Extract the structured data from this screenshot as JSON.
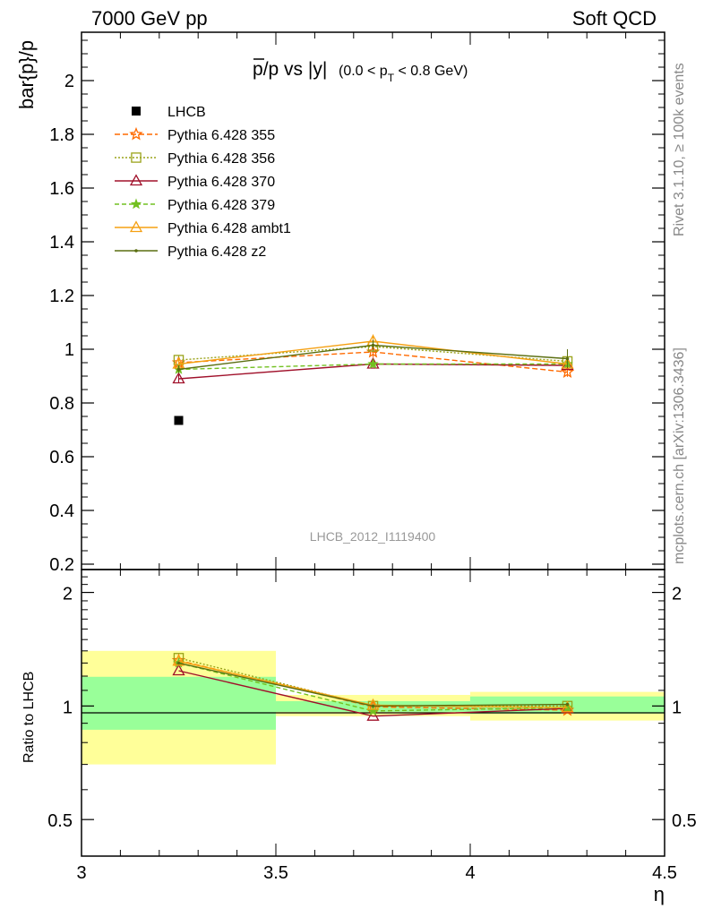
{
  "header": {
    "left": "7000 GeV pp",
    "right": "Soft QCD"
  },
  "side_labels": {
    "upper": "Rivet 3.1.10, ≥ 100k events",
    "lower": "mcplots.cern.ch [arXiv:1306.3436]"
  },
  "chart_data": [
    {
      "type": "line",
      "panel": "main",
      "title": "p̄/p vs |y|",
      "title_prefix": "p",
      "title_rest": "/p vs |y|",
      "subtitle": "(0.0 < p_T < 0.8 GeV)",
      "subtitle_pre": "(0.0 < p",
      "subtitle_sub": "T",
      "subtitle_post": " < 0.8 GeV)",
      "ylabel": "bar{p}/p",
      "watermark": "LHCB_2012_I1119400",
      "xlim": [
        3.0,
        4.5
      ],
      "ylim": [
        0.18,
        2.18
      ],
      "yticks": [
        0.2,
        0.4,
        0.6,
        0.8,
        1,
        1.2,
        1.4,
        1.6,
        1.8,
        2
      ],
      "ytick_labels": [
        "0.2",
        "0.4",
        "0.6",
        "0.8",
        "1",
        "1.2",
        "1.4",
        "1.6",
        "1.8",
        "2"
      ],
      "x": [
        3.25,
        3.75,
        4.25
      ],
      "data": {
        "name": "LHCB",
        "x": [
          3.25
        ],
        "values": [
          0.735
        ]
      },
      "series": [
        {
          "name": "Pythia 6.428 355",
          "color": "#ff6a00",
          "dash": "6,3",
          "marker": "star-open",
          "values": [
            0.95,
            0.99,
            0.915
          ],
          "errors": [
            0.018,
            0.02,
            0.018
          ]
        },
        {
          "name": "Pythia 6.428 356",
          "color": "#9aa31a",
          "dash": "2,2",
          "marker": "square-open",
          "values": [
            0.96,
            1.01,
            0.955
          ],
          "errors": [
            0.018,
            0.02,
            0.018
          ]
        },
        {
          "name": "Pythia 6.428 370",
          "color": "#a0102a",
          "dash": "",
          "marker": "triangle-open",
          "values": [
            0.89,
            0.945,
            0.94
          ],
          "errors": [
            0.015,
            0.015,
            0.015
          ]
        },
        {
          "name": "Pythia 6.428 379",
          "color": "#72c020",
          "dash": "5,3",
          "marker": "star-filled",
          "values": [
            0.925,
            0.945,
            0.945
          ],
          "errors": [
            0.015,
            0.015,
            0.015
          ]
        },
        {
          "name": "Pythia 6.428 ambt1",
          "color": "#f5a012",
          "dash": "",
          "marker": "triangle-open",
          "values": [
            0.945,
            1.03,
            0.945
          ],
          "errors": [
            0.015,
            0.025,
            0.015
          ]
        },
        {
          "name": "Pythia 6.428 z2",
          "color": "#5a6e10",
          "dash": "",
          "marker": "dot",
          "values": [
            0.925,
            1.015,
            0.965
          ],
          "errors": [
            0.015,
            0.02,
            0.035
          ]
        }
      ]
    },
    {
      "type": "line",
      "panel": "ratio",
      "ylabel": "Ratio to LHCB",
      "xlabel": "η",
      "log_y": true,
      "xlim": [
        3.0,
        4.5
      ],
      "ylim": [
        0.4,
        2.3
      ],
      "xticks": [
        3.0,
        3.5,
        4.0,
        4.5
      ],
      "xtick_labels": [
        "3",
        "3.5",
        "4",
        "4.5"
      ],
      "yticks": [
        0.5,
        1,
        2
      ],
      "ytick_labels": [
        "0.5",
        "1",
        "2"
      ],
      "bands": [
        {
          "x": [
            3.0,
            3.5
          ],
          "inner": [
            0.865,
            1.195
          ],
          "outer": [
            0.7,
            1.4
          ]
        },
        {
          "x": [
            3.5,
            4.0
          ],
          "inner": [
            0.965,
            1.03
          ],
          "outer": [
            0.94,
            1.07
          ]
        },
        {
          "x": [
            4.0,
            4.5
          ],
          "inner": [
            0.955,
            1.06
          ],
          "outer": [
            0.915,
            1.09
          ]
        }
      ],
      "x": [
        3.25,
        3.75,
        4.25
      ],
      "series": [
        {
          "name": "Pythia 6.428 355",
          "values": [
            1.32,
            0.995,
            0.975
          ]
        },
        {
          "name": "Pythia 6.428 356",
          "values": [
            1.34,
            1.0,
            1.0
          ]
        },
        {
          "name": "Pythia 6.428 370",
          "values": [
            1.24,
            0.94,
            0.985
          ]
        },
        {
          "name": "Pythia 6.428 379",
          "values": [
            1.3,
            0.97,
            0.99
          ]
        },
        {
          "name": "Pythia 6.428 ambt1",
          "values": [
            1.315,
            1.005,
            0.99
          ]
        },
        {
          "name": "Pythia 6.428 z2",
          "values": [
            1.3,
            1.0,
            1.01
          ]
        }
      ]
    }
  ]
}
